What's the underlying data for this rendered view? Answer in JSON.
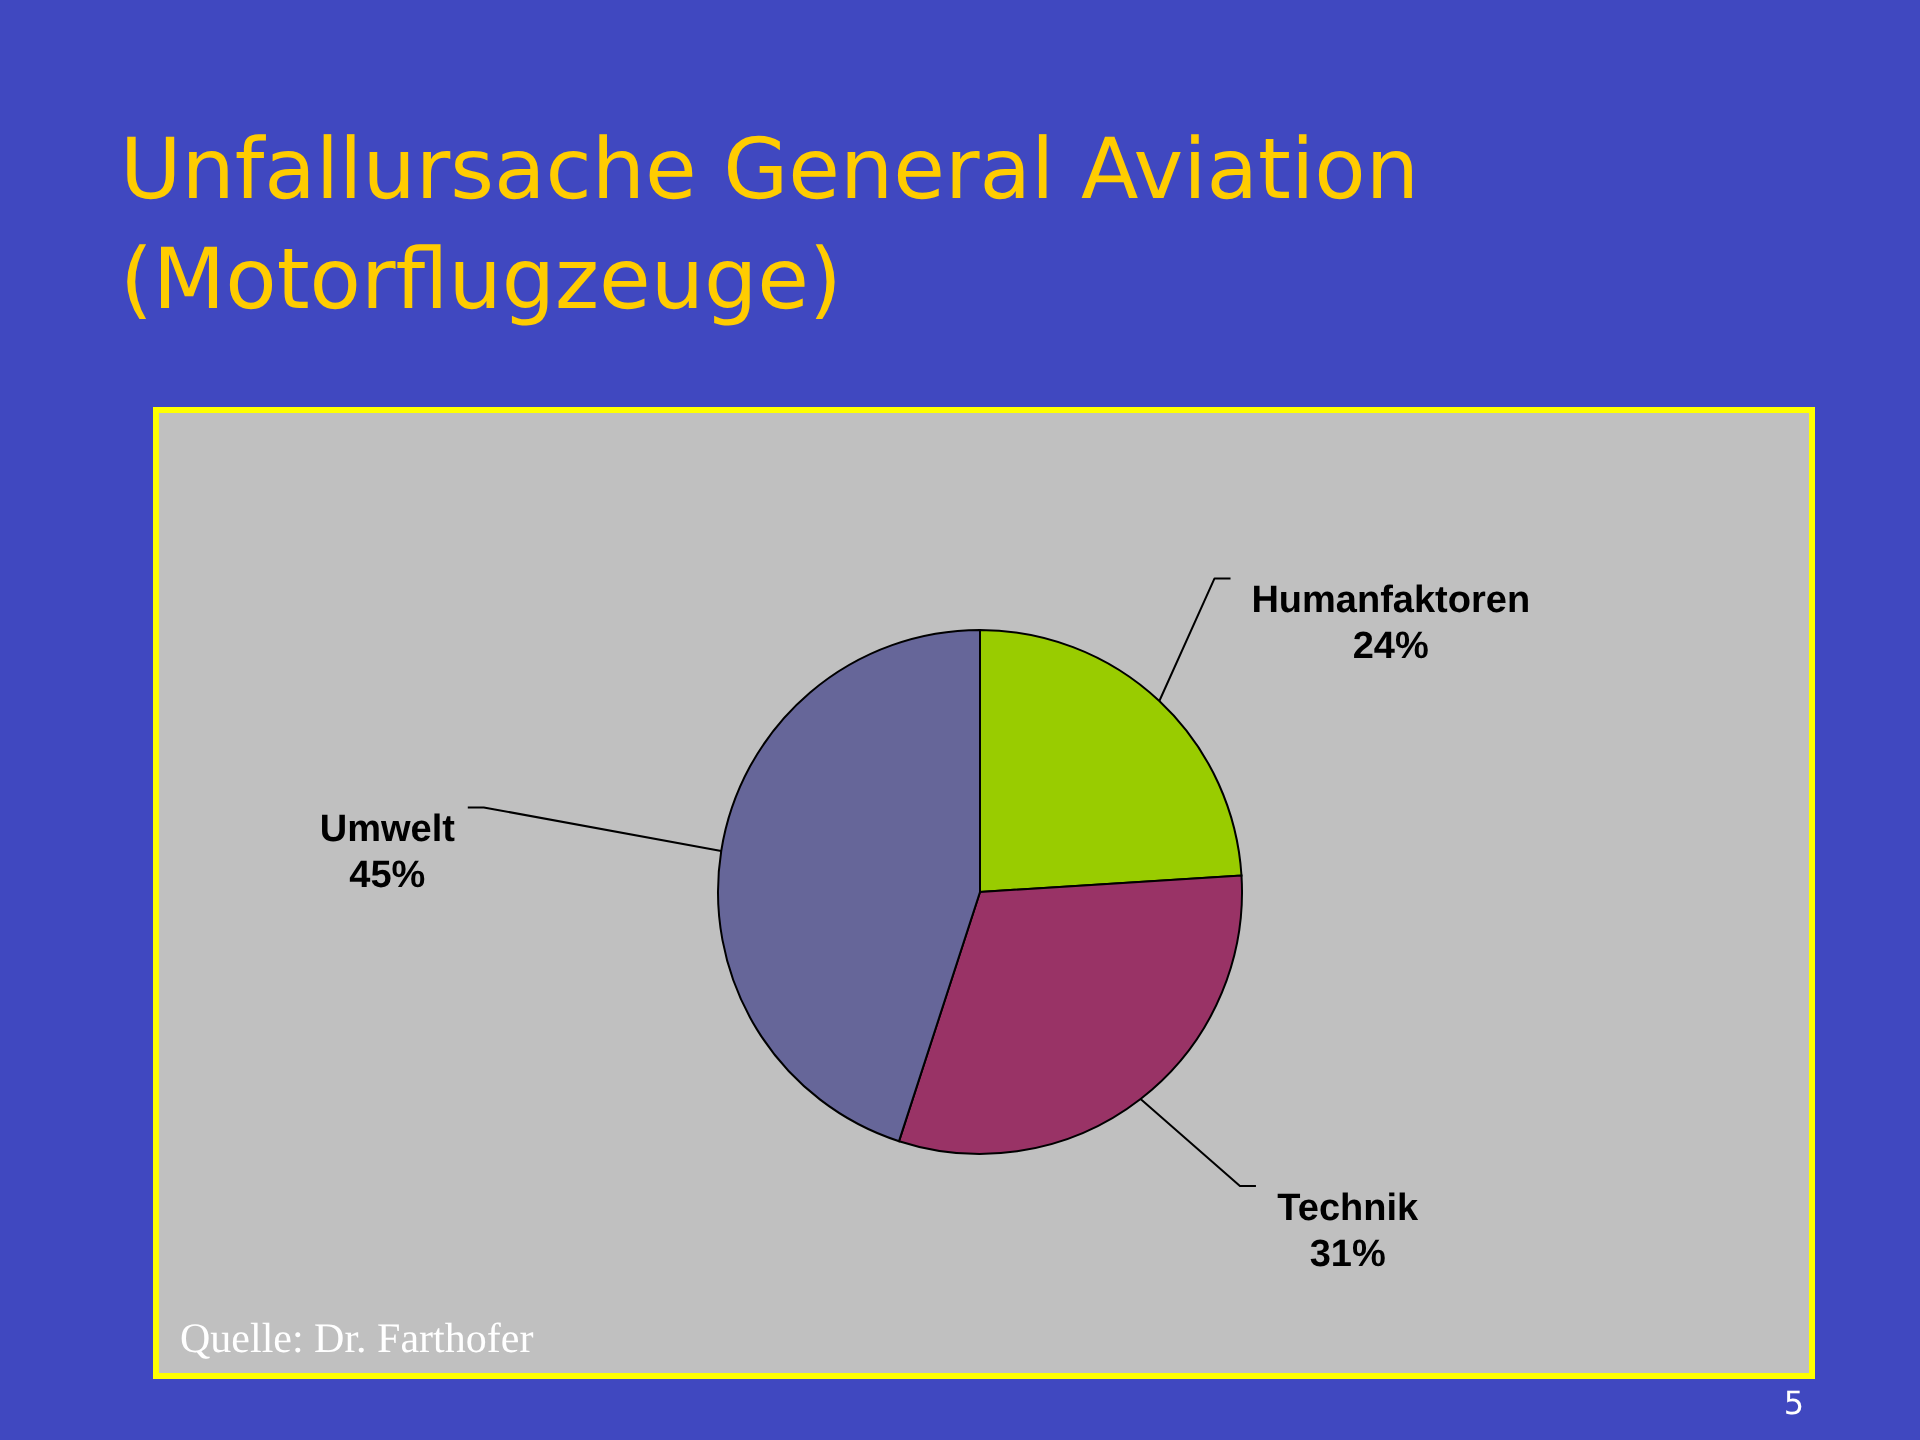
{
  "chart_data": {
    "type": "pie",
    "title": "Unfallursache General Aviation\n(Motorflugzeuge)",
    "categories": [
      "Humanfaktoren",
      "Technik",
      "Umwelt"
    ],
    "values": [
      24,
      31,
      45
    ],
    "colors": [
      "#99cc00",
      "#993366",
      "#666699"
    ],
    "value_labels": [
      "24%",
      "31%",
      "45%"
    ],
    "annotations": [
      "Quelle: Dr. Farthofer",
      "5"
    ]
  }
}
